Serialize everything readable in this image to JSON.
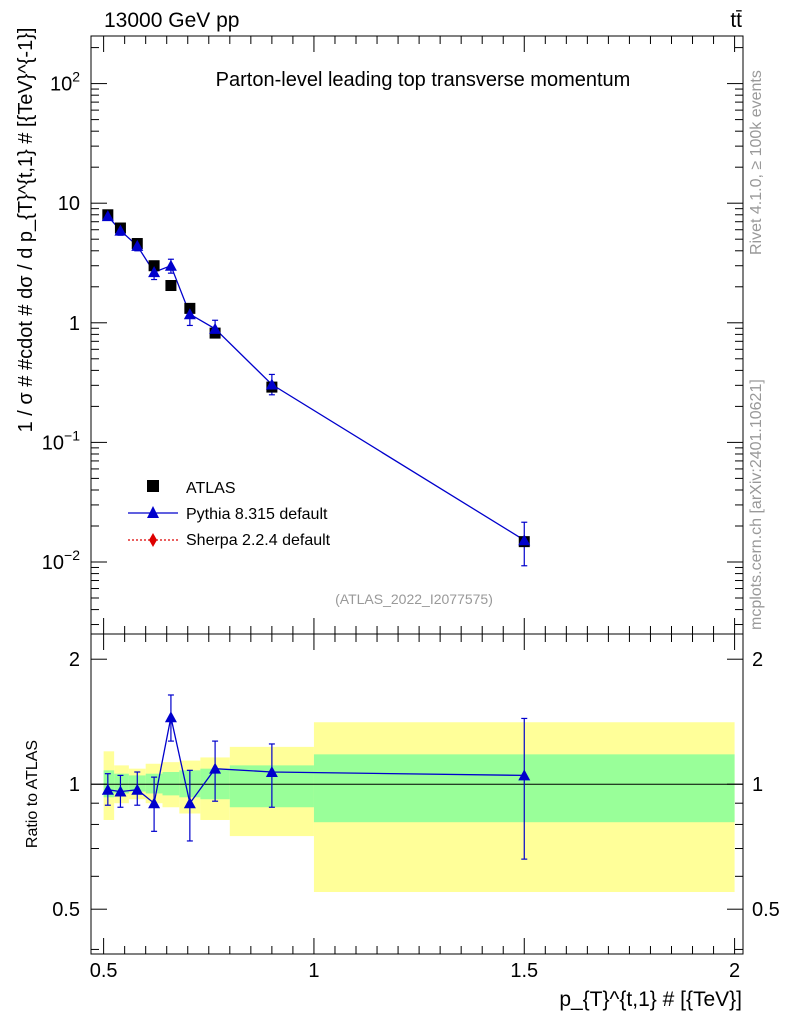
{
  "header": {
    "energy_label": "13000 GeV pp",
    "process_label": "tt̄",
    "rivet_label": "Rivet 4.1.0, ≥ 100k events",
    "site_label": "mcplots.cern.ch [arXiv:2401.10621]",
    "analysis_label": "(ATLAS_2022_I2077575)"
  },
  "colors": {
    "data": "#000000",
    "pythia": "#0000cc",
    "sherpa": "#dd0000",
    "band_inner": "#99ff99",
    "band_outer": "#ffff99"
  },
  "chart_data": [
    {
      "type": "scatter",
      "panel": "main",
      "title": "Parton-level leading top transverse momentum",
      "xlabel": "p_{T}^{t,1} # [{TeV}]",
      "ylabel": "1 / σ # #cdot # dσ / d p_{T}^{t,1} # [{TeV}^{-1}]",
      "yscale": "log",
      "xlim": [
        0.47,
        2.02
      ],
      "ylim": [
        0.0025,
        250
      ],
      "y_ticks": [
        {
          "value": 0.01,
          "base": "10",
          "exp": "−2"
        },
        {
          "value": 0.1,
          "base": "10",
          "exp": "−1"
        },
        {
          "value": 1,
          "base": "1",
          "exp": ""
        },
        {
          "value": 10,
          "base": "10",
          "exp": ""
        },
        {
          "value": 100,
          "base": "10",
          "exp": "2"
        }
      ],
      "series": [
        {
          "name": "ATLAS",
          "marker": "square",
          "x": [
            0.51,
            0.54,
            0.58,
            0.62,
            0.66,
            0.705,
            0.765,
            0.9,
            1.5
          ],
          "y": [
            8.0,
            6.2,
            4.6,
            3.0,
            2.05,
            1.32,
            0.82,
            0.29,
            0.0148
          ]
        },
        {
          "name": "Pythia 8.315 default",
          "marker": "triangle",
          "x": [
            0.51,
            0.54,
            0.58,
            0.62,
            0.66,
            0.705,
            0.765,
            0.9,
            1.5
          ],
          "y": [
            7.8,
            5.9,
            4.4,
            2.65,
            3.0,
            1.18,
            0.89,
            0.305,
            0.0152
          ],
          "y_err_low": [
            7.2,
            5.4,
            4.0,
            2.3,
            2.6,
            0.95,
            0.75,
            0.25,
            0.0093
          ],
          "y_err_high": [
            8.4,
            6.4,
            4.9,
            3.0,
            3.4,
            1.4,
            1.05,
            0.37,
            0.0215
          ]
        },
        {
          "name": "Sherpa 2.2.4 default",
          "marker": "diamond",
          "x": [],
          "y": []
        }
      ]
    },
    {
      "type": "line",
      "panel": "ratio",
      "ylabel": "Ratio to ATLAS",
      "xlim": [
        0.47,
        2.02
      ],
      "ylim": [
        0.39,
        2.3
      ],
      "yscale": "log",
      "x_ticks": [
        {
          "value": 0.5,
          "label": "0.5"
        },
        {
          "value": 1,
          "label": "1"
        },
        {
          "value": 1.5,
          "label": "1.5"
        },
        {
          "value": 2,
          "label": "2"
        }
      ],
      "y_ticks": [
        {
          "value": 0.5,
          "label": "0.5"
        },
        {
          "value": 1,
          "label": "1"
        },
        {
          "value": 2,
          "label": "2"
        }
      ],
      "bands": [
        {
          "x_low": 0.5,
          "x_high": 0.525,
          "inner_low": 0.93,
          "inner_high": 1.08,
          "outer_low": 0.82,
          "outer_high": 1.2
        },
        {
          "x_low": 0.525,
          "x_high": 0.56,
          "inner_low": 0.95,
          "inner_high": 1.06,
          "outer_low": 0.9,
          "outer_high": 1.11
        },
        {
          "x_low": 0.56,
          "x_high": 0.6,
          "inner_low": 0.96,
          "inner_high": 1.05,
          "outer_low": 0.92,
          "outer_high": 1.09
        },
        {
          "x_low": 0.6,
          "x_high": 0.64,
          "inner_low": 0.95,
          "inner_high": 1.06,
          "outer_low": 0.9,
          "outer_high": 1.12
        },
        {
          "x_low": 0.64,
          "x_high": 0.68,
          "inner_low": 0.94,
          "inner_high": 1.07,
          "outer_low": 0.88,
          "outer_high": 1.13
        },
        {
          "x_low": 0.68,
          "x_high": 0.73,
          "inner_low": 0.93,
          "inner_high": 1.08,
          "outer_low": 0.85,
          "outer_high": 1.14
        },
        {
          "x_low": 0.73,
          "x_high": 0.8,
          "inner_low": 0.92,
          "inner_high": 1.09,
          "outer_low": 0.82,
          "outer_high": 1.16
        },
        {
          "x_low": 0.8,
          "x_high": 1.0,
          "inner_low": 0.88,
          "inner_high": 1.11,
          "outer_low": 0.75,
          "outer_high": 1.23
        },
        {
          "x_low": 1.0,
          "x_high": 2.0,
          "inner_low": 0.81,
          "inner_high": 1.18,
          "outer_low": 0.55,
          "outer_high": 1.41
        }
      ],
      "series": [
        {
          "name": "Pythia 8.315 default",
          "x": [
            0.51,
            0.54,
            0.58,
            0.62,
            0.66,
            0.705,
            0.765,
            0.9,
            1.5
          ],
          "y": [
            0.97,
            0.96,
            0.97,
            0.9,
            1.45,
            0.9,
            1.09,
            1.07,
            1.05
          ],
          "y_err_low": [
            0.89,
            0.88,
            0.89,
            0.77,
            1.27,
            0.73,
            0.91,
            0.88,
            0.66
          ],
          "y_err_high": [
            1.06,
            1.05,
            1.07,
            1.04,
            1.64,
            1.08,
            1.27,
            1.25,
            1.44
          ]
        }
      ]
    }
  ]
}
